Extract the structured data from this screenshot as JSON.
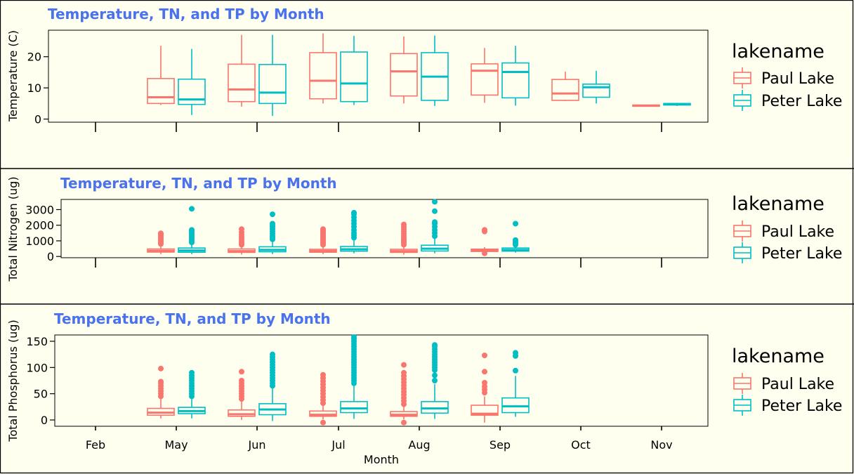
{
  "colors": {
    "paul": "#f8766d",
    "peter": "#00bfc4",
    "title": "#4a72ec",
    "background": "#fffff0"
  },
  "legend": {
    "title": "lakename",
    "items": [
      "Paul Lake",
      "Peter Lake"
    ]
  },
  "months": [
    "Feb",
    "May",
    "Jun",
    "Jul",
    "Aug",
    "Sep",
    "Oct",
    "Nov"
  ],
  "xlabel": "Month",
  "chart_data": [
    {
      "type": "box",
      "title": "Temperature, TN, and TP by Month",
      "ylabel": "Temperature (C)",
      "ylim": [
        -1,
        28.5
      ],
      "yticks": [
        0,
        10,
        20
      ],
      "show_x_labels": false,
      "categories": [
        "Feb",
        "May",
        "Jun",
        "Jul",
        "Aug",
        "Sep",
        "Oct",
        "Nov"
      ],
      "series": [
        {
          "name": "Paul Lake",
          "boxes": [
            {
              "month": "May",
              "whisker_low": 4.5,
              "q1": 5,
              "median": 7,
              "q3": 13,
              "whisker_high": 23.5,
              "outliers": []
            },
            {
              "month": "Jun",
              "whisker_low": 4,
              "q1": 5.6,
              "median": 9.5,
              "q3": 17.6,
              "whisker_high": 27,
              "outliers": []
            },
            {
              "month": "Jul",
              "whisker_low": 5,
              "q1": 6.5,
              "median": 12.3,
              "q3": 21.3,
              "whisker_high": 27.5,
              "outliers": []
            },
            {
              "month": "Aug",
              "whisker_low": 5,
              "q1": 7.4,
              "median": 15.3,
              "q3": 21,
              "whisker_high": 26.5,
              "outliers": []
            },
            {
              "month": "Sep",
              "whisker_low": 5.2,
              "q1": 7.7,
              "median": 15.5,
              "q3": 17.7,
              "whisker_high": 22.8,
              "outliers": []
            },
            {
              "month": "Oct",
              "whisker_low": 5.8,
              "q1": 6,
              "median": 8.2,
              "q3": 12.7,
              "whisker_high": 15.2,
              "outliers": []
            },
            {
              "month": "Nov",
              "whisker_low": 4,
              "q1": 4.1,
              "median": 4.3,
              "q3": 4.5,
              "whisker_high": 4.6,
              "outliers": []
            }
          ]
        },
        {
          "name": "Peter Lake",
          "boxes": [
            {
              "month": "May",
              "whisker_low": 1.3,
              "q1": 4.7,
              "median": 6.3,
              "q3": 12.8,
              "whisker_high": 22.5,
              "outliers": []
            },
            {
              "month": "Jun",
              "whisker_low": 1,
              "q1": 5,
              "median": 8.5,
              "q3": 17.5,
              "whisker_high": 27,
              "outliers": []
            },
            {
              "month": "Jul",
              "whisker_low": 4.5,
              "q1": 5.6,
              "median": 11.4,
              "q3": 21.5,
              "whisker_high": 26.7,
              "outliers": []
            },
            {
              "month": "Aug",
              "whisker_low": 4.2,
              "q1": 6,
              "median": 13.6,
              "q3": 21.3,
              "whisker_high": 26.8,
              "outliers": []
            },
            {
              "month": "Sep",
              "whisker_low": 4.3,
              "q1": 6.8,
              "median": 15.1,
              "q3": 18,
              "whisker_high": 23.5,
              "outliers": []
            },
            {
              "month": "Oct",
              "whisker_low": 5,
              "q1": 7,
              "median": 10.2,
              "q3": 11.2,
              "whisker_high": 15.5,
              "outliers": []
            },
            {
              "month": "Nov",
              "whisker_low": 4.2,
              "q1": 4.5,
              "median": 4.8,
              "q3": 5,
              "whisker_high": 5.2,
              "outliers": []
            }
          ]
        }
      ]
    },
    {
      "type": "box",
      "title": "Temperature, TN, and TP by Month",
      "ylabel": "Total Nitrogen (ug)",
      "ylim": [
        -80,
        3650
      ],
      "yticks": [
        0,
        1000,
        2000,
        3000
      ],
      "show_x_labels": false,
      "categories": [
        "Feb",
        "May",
        "Jun",
        "Jul",
        "Aug",
        "Sep",
        "Oct",
        "Nov"
      ],
      "series": [
        {
          "name": "Paul Lake",
          "boxes": [
            {
              "month": "May",
              "whisker_low": 150,
              "q1": 280,
              "median": 360,
              "q3": 480,
              "whisker_high": 700,
              "outliers": [
                800,
                900,
                1000,
                1100,
                1200,
                1300,
                1400,
                1480
              ]
            },
            {
              "month": "Jun",
              "whisker_low": 120,
              "q1": 260,
              "median": 340,
              "q3": 480,
              "whisker_high": 650,
              "outliers": [
                750,
                850,
                950,
                1050,
                1150,
                1250,
                1400,
                1550,
                1750
              ]
            },
            {
              "month": "Jul",
              "whisker_low": 150,
              "q1": 270,
              "median": 350,
              "q3": 460,
              "whisker_high": 650,
              "outliers": [
                750,
                850,
                950,
                1050,
                1150,
                1250,
                1350,
                1450,
                1550,
                1650,
                1750
              ]
            },
            {
              "month": "Aug",
              "whisker_low": 120,
              "q1": 260,
              "median": 340,
              "q3": 460,
              "whisker_high": 650,
              "outliers": [
                750,
                850,
                950,
                1050,
                1150,
                1300,
                1450,
                1600,
                1750,
                1900,
                2050
              ]
            },
            {
              "month": "Sep",
              "whisker_low": 200,
              "q1": 320,
              "median": 400,
              "q3": 470,
              "whisker_high": 600,
              "outliers": [
                200,
                1600,
                1700
              ]
            }
          ]
        },
        {
          "name": "Peter Lake",
          "boxes": [
            {
              "month": "May",
              "whisker_low": 150,
              "q1": 270,
              "median": 380,
              "q3": 540,
              "whisker_high": 800,
              "outliers": [
                900,
                1000,
                1100,
                1200,
                1300,
                1400,
                1500,
                1600,
                1700,
                3050
              ]
            },
            {
              "month": "Jun",
              "whisker_low": 150,
              "q1": 300,
              "median": 420,
              "q3": 620,
              "whisker_high": 1000,
              "outliers": [
                1100,
                1200,
                1300,
                1450,
                1600,
                1750,
                1900,
                2000,
                2100,
                2700
              ]
            },
            {
              "month": "Jul",
              "whisker_low": 200,
              "q1": 340,
              "median": 460,
              "q3": 640,
              "whisker_high": 1050,
              "outliers": [
                1200,
                1350,
                1500,
                1700,
                1900,
                2100,
                2300,
                2500,
                2700,
                2800
              ]
            },
            {
              "month": "Aug",
              "whisker_low": 200,
              "q1": 350,
              "median": 500,
              "q3": 720,
              "whisker_high": 1200,
              "outliers": [
                1300,
                1500,
                1700,
                1900,
                2100,
                2200,
                2900,
                3500
              ]
            },
            {
              "month": "Sep",
              "whisker_low": 250,
              "q1": 340,
              "median": 420,
              "q3": 540,
              "whisker_high": 650,
              "outliers": [
                750,
                850,
                950,
                1050,
                2100
              ]
            }
          ]
        }
      ]
    },
    {
      "type": "box",
      "title": "Temperature, TN, and TP by Month",
      "ylabel": "Total Phosphorus (ug)",
      "ylim": [
        -12,
        162
      ],
      "yticks": [
        0,
        50,
        100,
        150
      ],
      "show_x_labels": true,
      "categories": [
        "Feb",
        "May",
        "Jun",
        "Jul",
        "Aug",
        "Sep",
        "Oct",
        "Nov"
      ],
      "series": [
        {
          "name": "Paul Lake",
          "boxes": [
            {
              "month": "May",
              "whisker_low": 3,
              "q1": 9,
              "median": 14,
              "q3": 22,
              "whisker_high": 40,
              "outliers": [
                45,
                50,
                55,
                60,
                65,
                70,
                73,
                98
              ]
            },
            {
              "month": "Jun",
              "whisker_low": 0,
              "q1": 7,
              "median": 11,
              "q3": 19,
              "whisker_high": 35,
              "outliers": [
                40,
                45,
                50,
                55,
                60,
                65,
                70,
                75,
                92
              ]
            },
            {
              "month": "Jul",
              "whisker_low": 1,
              "q1": 7,
              "median": 10,
              "q3": 17,
              "whisker_high": 28,
              "outliers": [
                -5,
                32,
                38,
                44,
                50,
                56,
                62,
                68,
                74,
                80,
                86
              ]
            },
            {
              "month": "Aug",
              "whisker_low": 1,
              "q1": 7,
              "median": 10,
              "q3": 16,
              "whisker_high": 25,
              "outliers": [
                -5,
                30,
                36,
                42,
                48,
                54,
                60,
                66,
                72,
                78,
                84,
                90,
                105
              ]
            },
            {
              "month": "Sep",
              "whisker_low": -5,
              "q1": 9,
              "median": 12,
              "q3": 28,
              "whisker_high": 45,
              "outliers": [
                52,
                58,
                64,
                71,
                92,
                123
              ]
            }
          ]
        },
        {
          "name": "Peter Lake",
          "boxes": [
            {
              "month": "May",
              "whisker_low": 3,
              "q1": 12,
              "median": 17,
              "q3": 24,
              "whisker_high": 40,
              "outliers": [
                45,
                50,
                55,
                60,
                65,
                70,
                75,
                80,
                85,
                90
              ]
            },
            {
              "month": "Jun",
              "whisker_low": -2,
              "q1": 10,
              "median": 20,
              "q3": 31,
              "whisker_high": 60,
              "outliers": [
                65,
                70,
                75,
                80,
                85,
                90,
                95,
                100,
                105,
                110,
                115,
                120,
                125
              ]
            },
            {
              "month": "Jul",
              "whisker_low": 2,
              "q1": 14,
              "median": 22,
              "q3": 35,
              "whisker_high": 65,
              "outliers": [
                70,
                75,
                80,
                85,
                90,
                95,
                100,
                105,
                110,
                115,
                120,
                125,
                130,
                135,
                140,
                145,
                150,
                155,
                158
              ]
            },
            {
              "month": "Aug",
              "whisker_low": 2,
              "q1": 13,
              "median": 22,
              "q3": 35,
              "whisker_high": 68,
              "outliers": [
                75,
                85,
                95,
                100,
                105,
                110,
                115,
                120,
                125,
                130,
                135,
                140,
                143
              ]
            },
            {
              "month": "Sep",
              "whisker_low": 6,
              "q1": 14,
              "median": 26,
              "q3": 42,
              "whisker_high": 84,
              "outliers": [
                94,
                122,
                128
              ]
            }
          ]
        }
      ]
    }
  ]
}
